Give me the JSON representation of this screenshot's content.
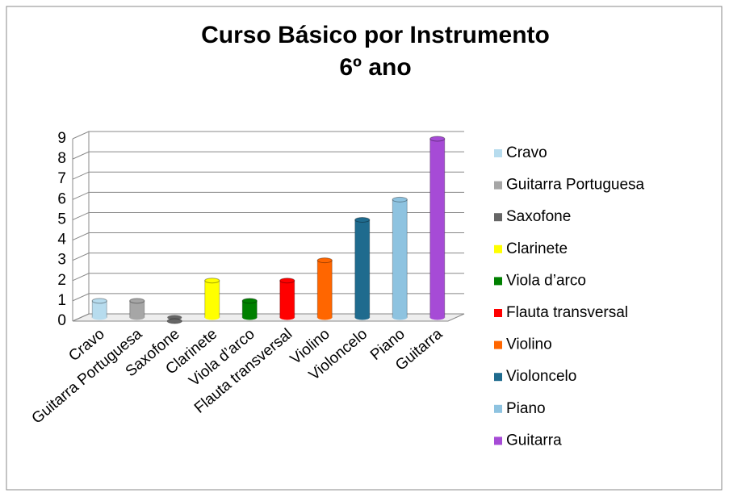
{
  "chart_data": {
    "type": "bar3d",
    "title": "Curso Básico por Instrumento",
    "subtitle": "6º ano",
    "categories": [
      "Cravo",
      "Guitarra Portuguesa",
      "Saxofone",
      "Clarinete",
      "Viola d’arco",
      "Flauta transversal",
      "Violino",
      "Violoncelo",
      "Piano",
      "Guitarra"
    ],
    "values": [
      1,
      1,
      0,
      2,
      1,
      2,
      3,
      5,
      6,
      9
    ],
    "colors": [
      "#b7dcee",
      "#a6a6a6",
      "#666666",
      "#ffff00",
      "#008000",
      "#ff0000",
      "#ff6600",
      "#1f6b8e",
      "#8ec3e0",
      "#a64bd6"
    ],
    "ylim": [
      0,
      9
    ],
    "yticks": [
      0,
      1,
      2,
      3,
      4,
      5,
      6,
      7,
      8,
      9
    ],
    "grid": true,
    "legend": "right"
  }
}
